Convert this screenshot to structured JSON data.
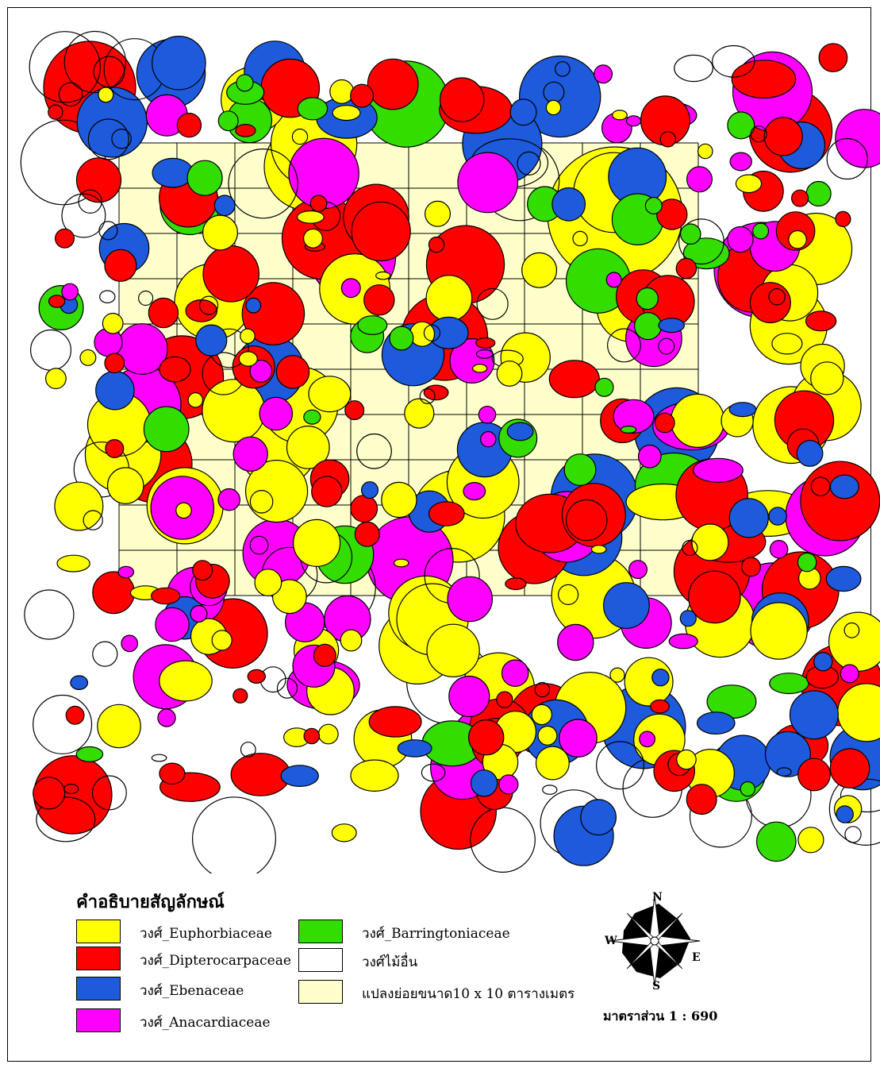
{
  "legend": {
    "title": "คำอธิบายสัญลักษณ์",
    "items": [
      {
        "key": "euphorbiaceae",
        "label": "วงศ์_Euphorbiaceae",
        "color": "#ffff00"
      },
      {
        "key": "dipterocarpaceae",
        "label": "วงศ์_Dipterocarpaceae",
        "color": "#ff0000"
      },
      {
        "key": "ebenaceae",
        "label": "วงศ์_Ebenaceae",
        "color": "#1e5adc"
      },
      {
        "key": "anacardiaceae",
        "label": "วงศ์_Anacardiaceae",
        "color": "#ff00ff"
      },
      {
        "key": "barringtoniaceae",
        "label": "วงศ์_Barringtoniaceae",
        "color": "#33dd00"
      },
      {
        "key": "others",
        "label": "วงศ์ไม้อื่น",
        "color": "#ffffff"
      },
      {
        "key": "subplot",
        "label": "แปลงย่อยขนาด10 x 10 ตารางเมตร",
        "color": "#ffffcc"
      }
    ]
  },
  "compass": {
    "north": "N",
    "south": "S",
    "east": "E",
    "west": "W"
  },
  "scale": {
    "label": "มาตราส่วน 1 : 690"
  },
  "map": {
    "grid": {
      "columns": 10,
      "rows": 10
    },
    "outline_color": "#000000"
  }
}
